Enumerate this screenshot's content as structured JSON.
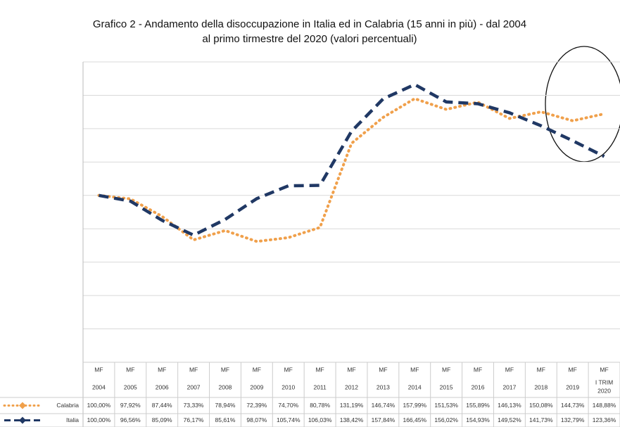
{
  "chart_data": {
    "type": "line",
    "title": [
      "Grafico 2 - Andamento della disoccupazione in Italia ed in Calabria (15 anni in più) - dal 2004",
      "al primo tirmestre del 2020 (valori percentuali)"
    ],
    "categories": [
      [
        "MF",
        "2004"
      ],
      [
        "MF",
        "2005"
      ],
      [
        "MF",
        "2006"
      ],
      [
        "MF",
        "2007"
      ],
      [
        "MF",
        "2008"
      ],
      [
        "MF",
        "2009"
      ],
      [
        "MF",
        "2010"
      ],
      [
        "MF",
        "2011"
      ],
      [
        "MF",
        "2012"
      ],
      [
        "MF",
        "2013"
      ],
      [
        "MF",
        "2014"
      ],
      [
        "MF",
        "2015"
      ],
      [
        "MF",
        "2016"
      ],
      [
        "MF",
        "2017"
      ],
      [
        "MF",
        "2018"
      ],
      [
        "MF",
        "2019"
      ],
      [
        "MF",
        "I TRIM",
        "2020"
      ]
    ],
    "series": [
      {
        "name": "Calabria",
        "color": "#f0a04b",
        "dash": "dotted",
        "values": [
          100,
          97.92,
          87.44,
          73.33,
          78.94,
          72.39,
          74.7,
          80.78,
          131.19,
          146.74,
          157.99,
          151.53,
          155.89,
          146.13,
          150.08,
          144.73,
          148.88
        ],
        "value_labels": [
          "100,00%",
          "97,92%",
          "87,44%",
          "73,33%",
          "78,94%",
          "72,39%",
          "74,70%",
          "80,78%",
          "131,19%",
          "146,74%",
          "157,99%",
          "151,53%",
          "155,89%",
          "146,13%",
          "150,08%",
          "144,73%",
          "148,88%"
        ]
      },
      {
        "name": "Italia",
        "color": "#203864",
        "dash": "dashed",
        "values": [
          100,
          96.56,
          85.09,
          76.17,
          85.61,
          98.07,
          105.74,
          106.03,
          138.42,
          157.84,
          166.45,
          156.02,
          154.93,
          149.52,
          141.73,
          132.79,
          123.36
        ],
        "value_labels": [
          "100,00%",
          "96,56%",
          "85,09%",
          "76,17%",
          "85,61%",
          "98,07%",
          "105,74%",
          "106,03%",
          "138,42%",
          "157,84%",
          "166,45%",
          "156,02%",
          "154,93%",
          "149,52%",
          "141,73%",
          "132,79%",
          "123,36%"
        ]
      }
    ],
    "ylim": [
      0,
      180
    ],
    "yticks": [
      0,
      20,
      40,
      60,
      80,
      100,
      120,
      140,
      160,
      180
    ],
    "grid": true
  }
}
